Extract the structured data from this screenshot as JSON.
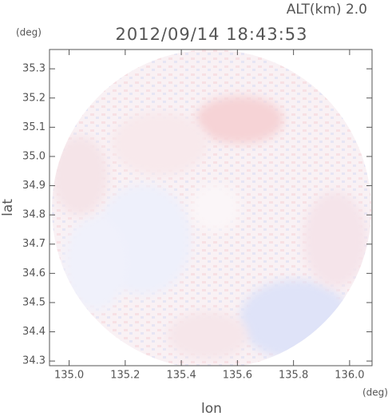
{
  "chart_data": {
    "type": "radar",
    "title": "2012/09/14 18:43:53",
    "altitude": "ALT(km) 2.0",
    "x_label": "lon",
    "y_label": "lat",
    "x_unit": "(deg)",
    "y_unit": "(deg)",
    "xlim": [
      134.93,
      136.08
    ],
    "ylim": [
      34.284,
      35.366
    ],
    "xticks": [
      {
        "value": 135.0,
        "label": "135.0"
      },
      135.2,
      135.4,
      135.6,
      135.8,
      {
        "value": 136.0,
        "label": "136.0"
      }
    ],
    "yticks": [
      35.3,
      35.2,
      35.1,
      {
        "value": 35.0,
        "label": "35.0"
      },
      34.9,
      34.8,
      34.7,
      34.6,
      34.5,
      34.4,
      34.3
    ]
  }
}
